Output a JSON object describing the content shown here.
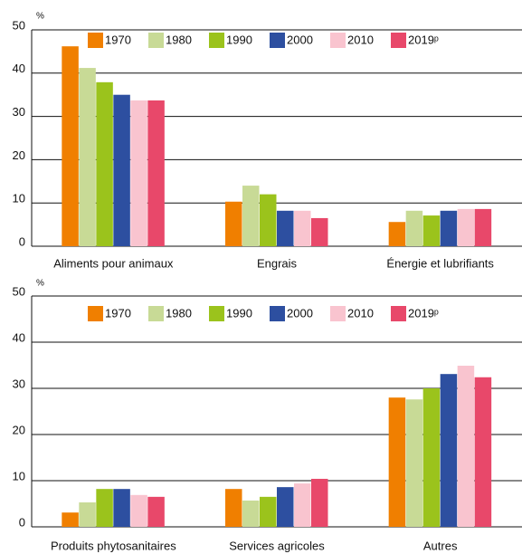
{
  "chart_data": [
    {
      "type": "bar",
      "y_label": "%",
      "categories": [
        "Aliments pour animaux",
        "Engrais",
        "Énergie et lubrifiants"
      ],
      "series": [
        {
          "name": "1970",
          "color": "#f07f00",
          "values": [
            46.2,
            10.3,
            5.6
          ]
        },
        {
          "name": "1980",
          "color": "#c8da96",
          "values": [
            41.2,
            14,
            8.2
          ]
        },
        {
          "name": "1990",
          "color": "#9bc31c",
          "values": [
            37.9,
            12,
            7.1
          ]
        },
        {
          "name": "2000",
          "color": "#2d4fa0",
          "values": [
            35,
            8.2,
            8.2
          ]
        },
        {
          "name": "2010",
          "color": "#f9c4cf",
          "values": [
            33.7,
            8.2,
            8.6
          ]
        },
        {
          "name": "2019ᵖ",
          "color": "#e8486a",
          "values": [
            33.7,
            6.5,
            8.6
          ]
        }
      ],
      "ylim": [
        0,
        50
      ],
      "yticks": [
        0,
        10,
        20,
        30,
        40,
        50
      ],
      "grid": true
    },
    {
      "type": "bar",
      "y_label": "%",
      "categories": [
        "Produits phytosanitaires",
        "Services agricoles",
        "Autres"
      ],
      "series": [
        {
          "name": "1970",
          "color": "#f07f00",
          "values": [
            3.1,
            8.2,
            28
          ]
        },
        {
          "name": "1980",
          "color": "#c8da96",
          "values": [
            5.3,
            5.7,
            27.6
          ]
        },
        {
          "name": "1990",
          "color": "#9bc31c",
          "values": [
            8.2,
            6.5,
            30
          ]
        },
        {
          "name": "2000",
          "color": "#2d4fa0",
          "values": [
            8.2,
            8.6,
            33.1
          ]
        },
        {
          "name": "2010",
          "color": "#f9c4cf",
          "values": [
            6.9,
            9.4,
            34.9
          ]
        },
        {
          "name": "2019ᵖ",
          "color": "#e8486a",
          "values": [
            6.5,
            10.4,
            32.4
          ]
        }
      ],
      "ylim": [
        0,
        50
      ],
      "yticks": [
        0,
        10,
        20,
        30,
        40,
        50
      ],
      "grid": true
    }
  ]
}
